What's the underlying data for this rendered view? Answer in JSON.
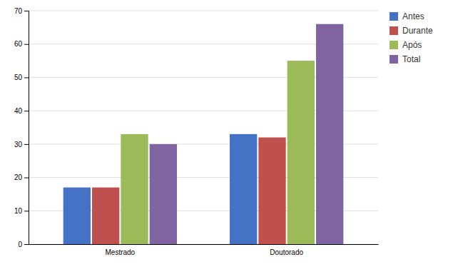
{
  "chart_data": {
    "type": "bar",
    "categories": [
      "Mestrado",
      "Doutorado"
    ],
    "series": [
      {
        "name": "Antes",
        "color": "#4472C4",
        "values": [
          17,
          33
        ]
      },
      {
        "name": "Durante",
        "color": "#C0504D",
        "values": [
          17,
          32
        ]
      },
      {
        "name": "Após",
        "color": "#9BBB59",
        "values": [
          33,
          55
        ]
      },
      {
        "name": "Total",
        "color": "#8064A2",
        "values": [
          30,
          66
        ]
      }
    ],
    "ylim": [
      0,
      70
    ],
    "yticks": [
      0,
      10,
      20,
      30,
      40,
      50,
      60,
      70
    ],
    "grid": true,
    "legend": "upper right"
  }
}
